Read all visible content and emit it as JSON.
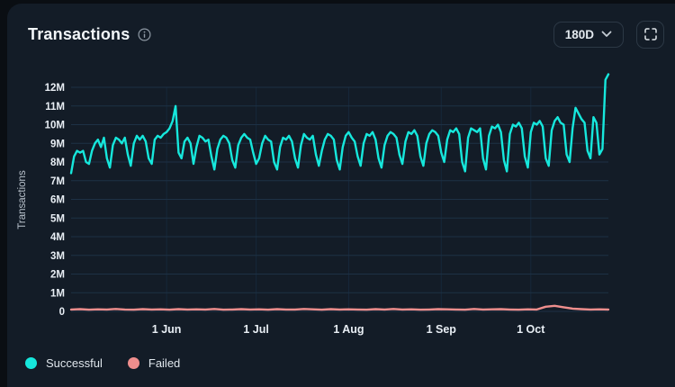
{
  "header": {
    "title": "Transactions",
    "info_icon": "info-circle",
    "range_selector": {
      "value": "180D",
      "chevron_icon": "chevron-down"
    },
    "fullscreen_icon": "fullscreen-expand"
  },
  "legend": [
    {
      "label": "Successful",
      "color": "#16e7dc"
    },
    {
      "label": "Failed",
      "color": "#ef8e8d"
    }
  ],
  "colors": {
    "page_background": "#0a0e13",
    "card_background": "#131c27",
    "gridline": "#1d3145",
    "month_gridline": "#16283a",
    "tick_text": "#e8eef4",
    "axis_title_text": "#b9c2cc",
    "successful_line": "#16e7dc",
    "failed_line": "#ef8e8d",
    "button_border": "#2c3845",
    "icon_gray": "#8e99a4"
  },
  "chart_data": {
    "type": "line",
    "title": "Transactions",
    "ylabel": "Transactions",
    "unit": "M",
    "ylim": [
      0,
      12
    ],
    "grid": true,
    "legend_position": "bottom-left",
    "y_tick_labels": [
      "0",
      "1M",
      "2M",
      "3M",
      "4M",
      "5M",
      "6M",
      "7M",
      "8M",
      "9M",
      "10M",
      "11M",
      "12M"
    ],
    "x_ticks": [
      {
        "label": "1 Jun",
        "day": 32
      },
      {
        "label": "1 Jul",
        "day": 62
      },
      {
        "label": "1 Aug",
        "day": 93
      },
      {
        "label": "1 Sep",
        "day": 124
      },
      {
        "label": "1 Oct",
        "day": 154
      }
    ],
    "days_total": 180,
    "series": [
      {
        "name": "Successful",
        "color": "#16e7dc",
        "values_unit": "millions",
        "values": [
          7.4,
          8.3,
          8.6,
          8.5,
          8.6,
          8.0,
          7.9,
          8.6,
          9.0,
          9.2,
          8.8,
          9.3,
          8.2,
          7.7,
          8.9,
          9.3,
          9.2,
          9.0,
          9.3,
          8.4,
          7.8,
          9.0,
          9.4,
          9.2,
          9.4,
          9.1,
          8.2,
          7.9,
          9.2,
          9.4,
          9.3,
          9.5,
          9.6,
          9.8,
          10.2,
          11.0,
          8.5,
          8.2,
          9.1,
          9.3,
          9.0,
          7.9,
          8.8,
          9.4,
          9.3,
          9.1,
          9.2,
          8.3,
          7.6,
          8.7,
          9.2,
          9.4,
          9.3,
          9.0,
          8.1,
          7.7,
          8.9,
          9.3,
          9.5,
          9.3,
          9.2,
          8.5,
          7.9,
          8.2,
          9.0,
          9.4,
          9.2,
          9.1,
          8.0,
          7.6,
          8.8,
          9.3,
          9.2,
          9.4,
          9.1,
          8.2,
          7.7,
          8.9,
          9.5,
          9.3,
          9.2,
          9.4,
          8.4,
          7.8,
          8.6,
          9.2,
          9.5,
          9.4,
          9.2,
          8.1,
          7.6,
          8.8,
          9.4,
          9.6,
          9.3,
          9.1,
          8.3,
          7.8,
          9.0,
          9.5,
          9.4,
          9.6,
          9.2,
          8.2,
          7.7,
          8.9,
          9.4,
          9.6,
          9.5,
          9.3,
          8.4,
          7.9,
          9.1,
          9.6,
          9.5,
          9.7,
          9.4,
          8.3,
          7.8,
          9.0,
          9.5,
          9.7,
          9.6,
          9.4,
          8.5,
          8.0,
          9.2,
          9.7,
          9.6,
          9.8,
          9.5,
          8.0,
          7.5,
          9.3,
          9.8,
          9.7,
          9.6,
          9.8,
          8.2,
          7.6,
          9.4,
          9.9,
          9.8,
          10.0,
          9.6,
          8.1,
          7.5,
          9.5,
          10.0,
          9.9,
          10.1,
          9.8,
          8.3,
          7.7,
          9.6,
          10.1,
          10.0,
          10.2,
          9.9,
          8.2,
          7.8,
          9.7,
          10.2,
          10.4,
          10.1,
          10.0,
          8.4,
          8.0,
          9.8,
          10.9,
          10.6,
          10.3,
          10.1,
          8.6,
          8.2,
          10.4,
          10.1,
          8.4,
          8.7,
          12.4,
          12.7
        ]
      },
      {
        "name": "Failed",
        "color": "#ef8e8d",
        "values_unit": "millions",
        "values": [
          0.1,
          0.12,
          0.09,
          0.11,
          0.1,
          0.13,
          0.1,
          0.09,
          0.12,
          0.1,
          0.11,
          0.09,
          0.12,
          0.1,
          0.11,
          0.1,
          0.13,
          0.09,
          0.1,
          0.12,
          0.1,
          0.11,
          0.09,
          0.12,
          0.1,
          0.1,
          0.13,
          0.11,
          0.09,
          0.12,
          0.1,
          0.11,
          0.1,
          0.09,
          0.12,
          0.1,
          0.13,
          0.1,
          0.11,
          0.09,
          0.1,
          0.12,
          0.11,
          0.1,
          0.09,
          0.13,
          0.1,
          0.11,
          0.12,
          0.1,
          0.09,
          0.11,
          0.1,
          0.25,
          0.3,
          0.22,
          0.15,
          0.12,
          0.1,
          0.11,
          0.1
        ]
      }
    ]
  }
}
